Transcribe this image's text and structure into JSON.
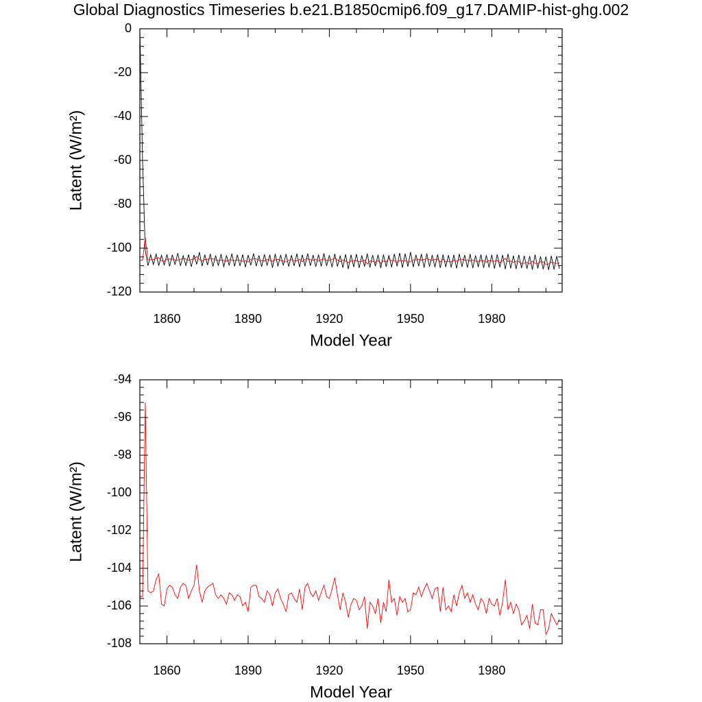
{
  "chart_data": [
    {
      "type": "line",
      "title": "Global Diagnostics Timeseries b.e21.B1850cmip6.f09_g17.DAMIP-hist-ghg.002",
      "xlabel": "Model Year",
      "ylabel": "Latent (W/m²)",
      "xlim": [
        1850,
        2006
      ],
      "xticks": [
        1860,
        1890,
        1920,
        1950,
        1980
      ],
      "ylim": [
        -120,
        0
      ],
      "yticks": [
        0,
        -20,
        -40,
        -60,
        -80,
        -100,
        -120
      ],
      "x": [
        1850,
        1851,
        1852,
        1853,
        1854,
        1855,
        1856,
        1857,
        1858,
        1859,
        1860,
        1861,
        1862,
        1863,
        1864,
        1865,
        1866,
        1867,
        1868,
        1869,
        1870,
        1871,
        1872,
        1873,
        1874,
        1875,
        1876,
        1877,
        1878,
        1879,
        1880,
        1881,
        1882,
        1883,
        1884,
        1885,
        1886,
        1887,
        1888,
        1889,
        1890,
        1891,
        1892,
        1893,
        1894,
        1895,
        1896,
        1897,
        1898,
        1899,
        1900,
        1901,
        1902,
        1903,
        1904,
        1905,
        1906,
        1907,
        1908,
        1909,
        1910,
        1911,
        1912,
        1913,
        1914,
        1915,
        1916,
        1917,
        1918,
        1919,
        1920,
        1921,
        1922,
        1923,
        1924,
        1925,
        1926,
        1927,
        1928,
        1929,
        1930,
        1931,
        1932,
        1933,
        1934,
        1935,
        1936,
        1937,
        1938,
        1939,
        1940,
        1941,
        1942,
        1943,
        1944,
        1945,
        1946,
        1947,
        1948,
        1949,
        1950,
        1951,
        1952,
        1953,
        1954,
        1955,
        1956,
        1957,
        1958,
        1959,
        1960,
        1961,
        1962,
        1963,
        1964,
        1965,
        1966,
        1967,
        1968,
        1969,
        1970,
        1971,
        1972,
        1973,
        1974,
        1975,
        1976,
        1977,
        1978,
        1979,
        1980,
        1981,
        1982,
        1983,
        1984,
        1985,
        1986,
        1987,
        1988,
        1989,
        1990,
        1991,
        1992,
        1993,
        1994,
        1995,
        1996,
        1997,
        1998,
        1999,
        2000,
        2001,
        2002,
        2003,
        2004,
        2005
      ],
      "series": [
        {
          "color": "#000000",
          "values": [
            0,
            -60,
            -101,
            -108,
            -103,
            -107.5,
            -102.5,
            -108,
            -103.2,
            -107.8,
            -102.8,
            -108.3,
            -103,
            -107.6,
            -102.2,
            -108.1,
            -103.4,
            -107.9,
            -102.9,
            -108.5,
            -103.1,
            -107.4,
            -101.8,
            -108.2,
            -103,
            -107.7,
            -102.6,
            -108.4,
            -103.3,
            -108,
            -102.7,
            -108.6,
            -103.2,
            -107.9,
            -102.5,
            -108.3,
            -103,
            -108.1,
            -102.9,
            -108.7,
            -103.1,
            -107.8,
            -102.4,
            -108.2,
            -103.3,
            -108.5,
            -102.8,
            -108,
            -103,
            -108.9,
            -102.6,
            -108.3,
            -103.1,
            -107.9,
            -102.7,
            -108.4,
            -103.2,
            -108.1,
            -102.5,
            -108.6,
            -103,
            -108.2,
            -102.4,
            -108,
            -103.1,
            -108.5,
            -102.9,
            -108.3,
            -102.3,
            -108.1,
            -103.2,
            -108.7,
            -102.6,
            -108.4,
            -103.4,
            -108.9,
            -102.8,
            -109.5,
            -103,
            -108.6,
            -102.7,
            -109,
            -103.3,
            -108.4,
            -102.5,
            -108.8,
            -103.1,
            -108.2,
            -103,
            -109.1,
            -102.9,
            -108.5,
            -103.2,
            -108.7,
            -102.6,
            -108.3,
            -102.2,
            -108.9,
            -102.5,
            -108.4,
            -101.8,
            -108.6,
            -103,
            -108.2,
            -102.7,
            -108.9,
            -102.4,
            -108.5,
            -103.1,
            -108.7,
            -102.8,
            -109,
            -102.9,
            -108.6,
            -103.2,
            -108.8,
            -103,
            -109.2,
            -102.6,
            -108.5,
            -103.1,
            -108.9,
            -102.7,
            -109.1,
            -103.3,
            -108.6,
            -102.9,
            -109,
            -103.2,
            -108.8,
            -103,
            -109.3,
            -102.8,
            -108.7,
            -103.1,
            -109.6,
            -102.6,
            -109.2,
            -103.4,
            -109.5,
            -103,
            -109.1,
            -103.5,
            -109.4,
            -103.6,
            -109.8,
            -102.9,
            -109.3,
            -103.7,
            -109.6,
            -103.8,
            -109.9,
            -103.5,
            -109.7,
            -103.6,
            -109.4
          ]
        },
        {
          "color": "#ff0000",
          "values": [
            -105.5,
            -105.5,
            -95.2,
            -105.2,
            -105.3,
            -105.2,
            -104.6,
            -104.3,
            -105.9,
            -106.0,
            -105.1,
            -104.9,
            -105.0,
            -105.4,
            -105.6,
            -105.0,
            -104.8,
            -104.9,
            -105.6,
            -105.2,
            -104.9,
            -103.8,
            -105.2,
            -105.8,
            -105.2,
            -105.0,
            -104.9,
            -104.8,
            -105.4,
            -105.6,
            -105.4,
            -105.6,
            -105.9,
            -105.3,
            -105.4,
            -105.7,
            -105.4,
            -105.5,
            -106.0,
            -105.8,
            -106.3,
            -105.0,
            -104.9,
            -104.9,
            -105.5,
            -105.6,
            -105.8,
            -105.2,
            -105.4,
            -106.0,
            -105.3,
            -105.1,
            -105.6,
            -105.9,
            -106.3,
            -105.4,
            -105.3,
            -105.6,
            -105.8,
            -105.1,
            -106.2,
            -105.0,
            -104.8,
            -105.3,
            -105.5,
            -105.2,
            -105.7,
            -105.3,
            -104.9,
            -105.5,
            -105.6,
            -105.1,
            -104.5,
            -105.4,
            -106.2,
            -105.3,
            -105.8,
            -106.6,
            -105.9,
            -105.6,
            -105.7,
            -106.2,
            -106.0,
            -105.5,
            -107.2,
            -105.8,
            -106.0,
            -106.4,
            -105.6,
            -106.9,
            -105.8,
            -106.3,
            -104.6,
            -105.8,
            -105.6,
            -106.5,
            -105.5,
            -105.8,
            -105.6,
            -106.3,
            -106.2,
            -105.3,
            -105.4,
            -105.0,
            -105.5,
            -105.1,
            -104.8,
            -105.2,
            -105.6,
            -105.1,
            -105.0,
            -106.3,
            -105.0,
            -106.2,
            -106.0,
            -106.3,
            -105.4,
            -106.0,
            -105.3,
            -104.9,
            -105.6,
            -105.3,
            -105.8,
            -105.4,
            -105.9,
            -106.2,
            -105.6,
            -105.8,
            -106.4,
            -105.6,
            -105.9,
            -106.0,
            -105.6,
            -106.5,
            -105.8,
            -104.6,
            -106.2,
            -105.8,
            -106.4,
            -105.9,
            -106.2,
            -107.0,
            -106.8,
            -106.5,
            -107.2,
            -105.9,
            -106.9,
            -107.0,
            -106.2,
            -106.2,
            -107.5,
            -107.2,
            -106.4,
            -106.7,
            -107.0,
            -106.7
          ]
        }
      ]
    },
    {
      "type": "line",
      "xlabel": "Model Year",
      "ylabel": "Latent (W/m²)",
      "xlim": [
        1850,
        2006
      ],
      "xticks": [
        1860,
        1890,
        1920,
        1950,
        1980
      ],
      "ylim": [
        -108,
        -94
      ],
      "yticks": [
        -94,
        -96,
        -98,
        -100,
        -102,
        -104,
        -106,
        -108
      ],
      "series": [
        {
          "color": "#ff0000",
          "values": [
            -105.5,
            -105.5,
            -95.2,
            -105.2,
            -105.3,
            -105.2,
            -104.6,
            -104.3,
            -105.9,
            -106.0,
            -105.1,
            -104.9,
            -105.0,
            -105.4,
            -105.6,
            -105.0,
            -104.8,
            -104.9,
            -105.6,
            -105.2,
            -104.9,
            -103.8,
            -105.2,
            -105.8,
            -105.2,
            -105.0,
            -104.9,
            -104.8,
            -105.4,
            -105.6,
            -105.4,
            -105.6,
            -105.9,
            -105.3,
            -105.4,
            -105.7,
            -105.4,
            -105.5,
            -106.0,
            -105.8,
            -106.3,
            -105.0,
            -104.9,
            -104.9,
            -105.5,
            -105.6,
            -105.8,
            -105.2,
            -105.4,
            -106.0,
            -105.3,
            -105.1,
            -105.6,
            -105.9,
            -106.3,
            -105.4,
            -105.3,
            -105.6,
            -105.8,
            -105.1,
            -106.2,
            -105.0,
            -104.8,
            -105.3,
            -105.5,
            -105.2,
            -105.7,
            -105.3,
            -104.9,
            -105.5,
            -105.6,
            -105.1,
            -104.5,
            -105.4,
            -106.2,
            -105.3,
            -105.8,
            -106.6,
            -105.9,
            -105.6,
            -105.7,
            -106.2,
            -106.0,
            -105.5,
            -107.2,
            -105.8,
            -106.0,
            -106.4,
            -105.6,
            -106.9,
            -105.8,
            -106.3,
            -104.6,
            -105.8,
            -105.6,
            -106.5,
            -105.5,
            -105.8,
            -105.6,
            -106.3,
            -106.2,
            -105.3,
            -105.4,
            -105.0,
            -105.5,
            -105.1,
            -104.8,
            -105.2,
            -105.6,
            -105.1,
            -105.0,
            -106.3,
            -105.0,
            -106.2,
            -106.0,
            -106.3,
            -105.4,
            -106.0,
            -105.3,
            -104.9,
            -105.6,
            -105.3,
            -105.8,
            -105.4,
            -105.9,
            -106.2,
            -105.6,
            -105.8,
            -106.4,
            -105.6,
            -105.9,
            -106.0,
            -105.6,
            -106.5,
            -105.8,
            -104.6,
            -106.2,
            -105.8,
            -106.4,
            -105.9,
            -106.2,
            -107.0,
            -106.8,
            -106.5,
            -107.2,
            -105.9,
            -106.9,
            -107.0,
            -106.2,
            -106.2,
            -107.5,
            -107.2,
            -106.4,
            -106.7,
            -107.0,
            -106.7
          ]
        }
      ]
    }
  ]
}
